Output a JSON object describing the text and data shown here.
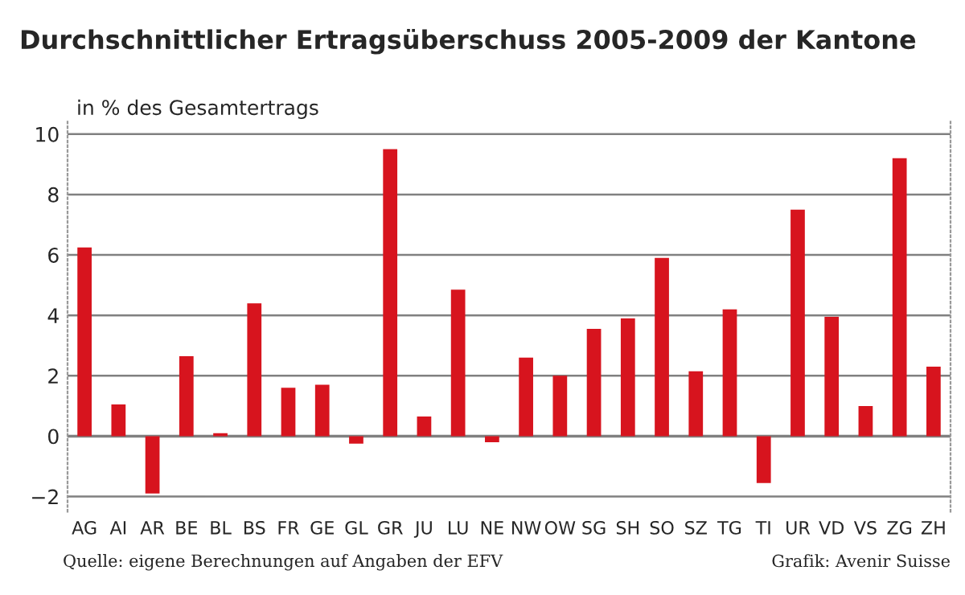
{
  "chart_data": {
    "type": "bar",
    "title": "Durchschnittlicher Ertragsüberschuss 2005-2009 der Kantone",
    "ylabel": "in % des Gesamtertrags",
    "categories": [
      "AG",
      "AI",
      "AR",
      "BE",
      "BL",
      "BS",
      "FR",
      "GE",
      "GL",
      "GR",
      "JU",
      "LU",
      "NE",
      "NW",
      "OW",
      "SG",
      "SH",
      "SO",
      "SZ",
      "TG",
      "TI",
      "UR",
      "VD",
      "VS",
      "ZG",
      "ZH"
    ],
    "values": [
      6.25,
      1.05,
      -1.9,
      2.65,
      0.1,
      4.4,
      1.6,
      1.7,
      -0.25,
      9.5,
      0.65,
      4.85,
      -0.2,
      2.6,
      2.0,
      3.55,
      3.9,
      5.9,
      2.15,
      4.2,
      -1.55,
      7.5,
      3.95,
      1.0,
      9.2,
      2.3
    ],
    "color": "#d7141e",
    "ylim": [
      -2.5,
      10.5
    ],
    "yticks": [
      {
        "value": -2,
        "label": "−2"
      },
      0,
      2,
      4,
      6,
      8,
      10
    ],
    "grid": "y",
    "annotations": [
      "Quelle: eigene Berechnungen auf Angaben der EFV",
      "Grafik: Avenir Suisse"
    ]
  }
}
